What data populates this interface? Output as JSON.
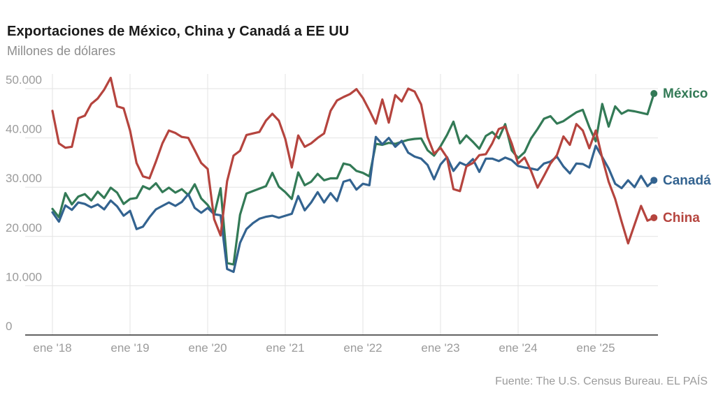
{
  "header": {
    "title": "Exportaciones de México, China y Canadá a EE UU",
    "subtitle": "Millones de dólares"
  },
  "source": {
    "label": "Fuente: The U.S. Census Bureau. EL PAÍS"
  },
  "colors": {
    "mexico": "#337a56",
    "canada": "#336390",
    "china": "#b5443e",
    "grid": "#e3e3e3",
    "axis": "#2e2e2e",
    "tick_label": "#9b9b9b",
    "title": "#1a1a1a",
    "subtitle": "#8d8d8d",
    "background": "#ffffff"
  },
  "chart_data": {
    "type": "line",
    "title": "Exportaciones de México, China y Canadá a EE UU",
    "ylabel": "Millones de dólares",
    "xlabel": "",
    "x_unit": "month",
    "x_start": "2018-01",
    "x_end": "2025-10",
    "grid": true,
    "legend_position": "right-end-of-line",
    "ylim": [
      0,
      52500
    ],
    "y_ticks": [
      0,
      10000,
      20000,
      30000,
      40000,
      50000
    ],
    "y_tick_labels": [
      "0",
      "10.000",
      "20.000",
      "30.000",
      "40.000",
      "50.000"
    ],
    "x_tick_months": [
      0,
      12,
      24,
      36,
      48,
      60,
      72,
      84
    ],
    "x_tick_labels": [
      "ene '18",
      "ene '19",
      "ene '20",
      "ene '21",
      "ene '22",
      "ene '23",
      "ene '24",
      "ene '25"
    ],
    "series": [
      {
        "name": "México",
        "color": "#337a56",
        "values": [
          25600,
          23900,
          28800,
          26500,
          28100,
          28600,
          27300,
          29100,
          27800,
          29900,
          28900,
          26600,
          27600,
          27800,
          30200,
          29600,
          30800,
          29000,
          29900,
          28900,
          29600,
          28400,
          30600,
          27700,
          26400,
          24400,
          29800,
          14600,
          14300,
          24400,
          28700,
          29200,
          29700,
          30200,
          32900,
          30100,
          29000,
          27600,
          33000,
          30400,
          31100,
          32700,
          31400,
          31800,
          31800,
          34800,
          34500,
          33300,
          32900,
          32200,
          38800,
          38600,
          39000,
          38800,
          39200,
          39600,
          39800,
          39900,
          37500,
          36400,
          38300,
          40600,
          43300,
          38900,
          40500,
          39200,
          37800,
          40400,
          41200,
          39900,
          42800,
          37500,
          35900,
          37100,
          39900,
          41800,
          43900,
          44400,
          42900,
          43400,
          44300,
          45200,
          45700,
          42200,
          39300,
          46900,
          42300,
          46400,
          44900,
          45600,
          45400,
          45100,
          44800,
          49000
        ]
      },
      {
        "name": "Canadá",
        "color": "#336390",
        "values": [
          24900,
          23000,
          26300,
          25400,
          26900,
          26600,
          25900,
          26500,
          25500,
          27300,
          26100,
          24200,
          25200,
          21500,
          22000,
          23900,
          25500,
          26200,
          26900,
          26200,
          27000,
          28600,
          25800,
          24800,
          25800,
          24500,
          24300,
          13400,
          12800,
          18700,
          21500,
          22700,
          23600,
          24000,
          24200,
          23800,
          24200,
          24600,
          28200,
          25300,
          26900,
          29000,
          26900,
          28800,
          27200,
          31100,
          31500,
          29500,
          30700,
          30400,
          40200,
          38700,
          40000,
          38200,
          39400,
          37000,
          36200,
          35800,
          34500,
          31600,
          34600,
          36100,
          33300,
          35000,
          34400,
          35700,
          33100,
          35800,
          35800,
          35300,
          36000,
          35500,
          34300,
          34000,
          33800,
          33500,
          34800,
          35200,
          36200,
          34200,
          32800,
          34800,
          34700,
          34000,
          38400,
          36100,
          33800,
          30700,
          29800,
          31400,
          30000,
          32300,
          30200,
          31400
        ]
      },
      {
        "name": "China",
        "color": "#b5443e",
        "values": [
          45500,
          38900,
          38000,
          38200,
          44000,
          44500,
          46900,
          48000,
          49800,
          52200,
          46400,
          46000,
          41500,
          34900,
          32200,
          31800,
          35200,
          38900,
          41500,
          41000,
          40200,
          40000,
          37500,
          34900,
          33700,
          23500,
          20200,
          31200,
          36400,
          37400,
          40600,
          40900,
          41200,
          43500,
          44900,
          43500,
          39800,
          34000,
          40500,
          38200,
          38900,
          40000,
          40900,
          45500,
          47600,
          48300,
          48900,
          49900,
          48100,
          45600,
          42900,
          47800,
          43100,
          48700,
          47400,
          50000,
          49400,
          46800,
          40200,
          36800,
          38000,
          36000,
          29600,
          29200,
          34200,
          34900,
          36500,
          36700,
          38900,
          41800,
          42300,
          38900,
          34800,
          36000,
          33300,
          29900,
          32300,
          34800,
          36500,
          40300,
          38600,
          42800,
          41500,
          37900,
          41500,
          35900,
          31100,
          27600,
          23000,
          18600,
          22400,
          26200,
          23200,
          23800
        ]
      }
    ]
  }
}
